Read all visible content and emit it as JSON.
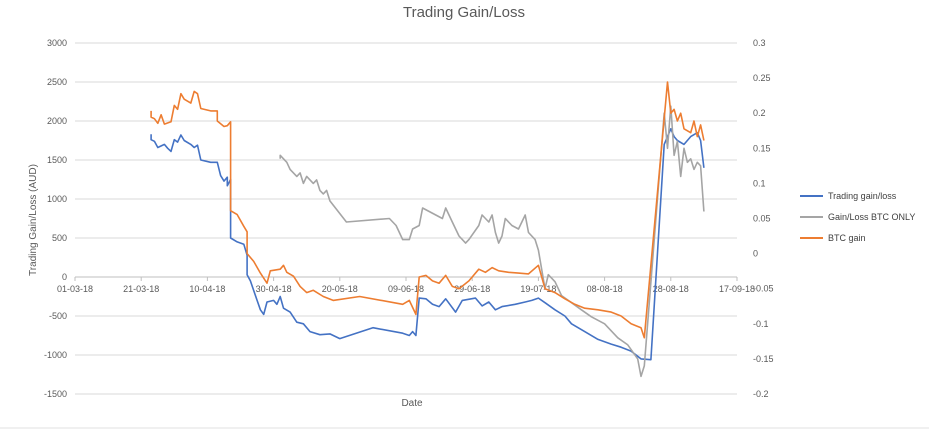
{
  "chart_data": {
    "type": "line",
    "title": "Trading Gain/Loss",
    "xlabel": "Date",
    "ylabel": "Trading Gain/Loss (AUD)",
    "y2label": "",
    "grid": true,
    "legend_position": "right",
    "xlim": [
      "2018-03-01",
      "2018-09-17"
    ],
    "ylim": [
      -1500,
      3000
    ],
    "y2lim": [
      -0.2,
      0.3
    ],
    "x_ticks": [
      "01-03-18",
      "21-03-18",
      "10-04-18",
      "30-04-18",
      "20-05-18",
      "09-06-18",
      "29-06-18",
      "19-07-18",
      "08-08-18",
      "28-08-18",
      "17-09-18"
    ],
    "y_ticks": [
      "3000",
      "2500",
      "2000",
      "1500",
      "1000",
      "500",
      "0",
      "-500",
      "-1000",
      "-1500"
    ],
    "y2_ticks": [
      "0.3",
      "0.25",
      "0.2",
      "0.15",
      "0.1",
      "0.05",
      "0",
      "-0.05",
      "-0.1",
      "-0.15",
      "-0.2"
    ],
    "series": [
      {
        "name": "Trading gain/loss",
        "axis": "left",
        "color": "#4472c4",
        "points": [
          [
            "2018-03-24",
            1830
          ],
          [
            "2018-03-24",
            1760
          ],
          [
            "2018-03-25",
            1740
          ],
          [
            "2018-03-26",
            1660
          ],
          [
            "2018-03-28",
            1700
          ],
          [
            "2018-03-29",
            1650
          ],
          [
            "2018-03-30",
            1610
          ],
          [
            "2018-03-31",
            1760
          ],
          [
            "2018-04-01",
            1730
          ],
          [
            "2018-04-02",
            1820
          ],
          [
            "2018-04-03",
            1750
          ],
          [
            "2018-04-05",
            1700
          ],
          [
            "2018-04-06",
            1660
          ],
          [
            "2018-04-07",
            1690
          ],
          [
            "2018-04-08",
            1500
          ],
          [
            "2018-04-11",
            1470
          ],
          [
            "2018-04-13",
            1470
          ],
          [
            "2018-04-14",
            1300
          ],
          [
            "2018-04-15",
            1230
          ],
          [
            "2018-04-16",
            1280
          ],
          [
            "2018-04-16",
            1170
          ],
          [
            "2018-04-17",
            1250
          ],
          [
            "2018-04-17",
            500
          ],
          [
            "2018-04-19",
            450
          ],
          [
            "2018-04-21",
            420
          ],
          [
            "2018-04-22",
            280
          ],
          [
            "2018-04-22",
            30
          ],
          [
            "2018-04-23",
            -50
          ],
          [
            "2018-04-25",
            -300
          ],
          [
            "2018-04-26",
            -420
          ],
          [
            "2018-04-27",
            -480
          ],
          [
            "2018-04-28",
            -320
          ],
          [
            "2018-04-30",
            -300
          ],
          [
            "2018-05-01",
            -350
          ],
          [
            "2018-05-02",
            -250
          ],
          [
            "2018-05-03",
            -400
          ],
          [
            "2018-05-05",
            -450
          ],
          [
            "2018-05-07",
            -580
          ],
          [
            "2018-05-09",
            -600
          ],
          [
            "2018-05-11",
            -700
          ],
          [
            "2018-05-14",
            -740
          ],
          [
            "2018-05-17",
            -730
          ],
          [
            "2018-05-20",
            -790
          ],
          [
            "2018-05-30",
            -650
          ],
          [
            "2018-06-08",
            -720
          ],
          [
            "2018-06-10",
            -750
          ],
          [
            "2018-06-11",
            -700
          ],
          [
            "2018-06-12",
            -750
          ],
          [
            "2018-06-13",
            -270
          ],
          [
            "2018-06-15",
            -280
          ],
          [
            "2018-06-17",
            -350
          ],
          [
            "2018-06-19",
            -380
          ],
          [
            "2018-06-21",
            -280
          ],
          [
            "2018-06-24",
            -450
          ],
          [
            "2018-06-26",
            -300
          ],
          [
            "2018-06-30",
            -270
          ],
          [
            "2018-07-02",
            -370
          ],
          [
            "2018-07-04",
            -320
          ],
          [
            "2018-07-06",
            -420
          ],
          [
            "2018-07-08",
            -380
          ],
          [
            "2018-07-12",
            -350
          ],
          [
            "2018-07-15",
            -320
          ],
          [
            "2018-07-17",
            -300
          ],
          [
            "2018-07-19",
            -270
          ],
          [
            "2018-07-21",
            -330
          ],
          [
            "2018-07-24",
            -420
          ],
          [
            "2018-07-27",
            -500
          ],
          [
            "2018-07-29",
            -600
          ],
          [
            "2018-08-02",
            -700
          ],
          [
            "2018-08-06",
            -800
          ],
          [
            "2018-08-10",
            -860
          ],
          [
            "2018-08-13",
            -900
          ],
          [
            "2018-08-16",
            -950
          ],
          [
            "2018-08-19",
            -1050
          ],
          [
            "2018-08-22",
            -1060
          ],
          [
            "2018-08-26",
            1700
          ],
          [
            "2018-08-28",
            1900
          ],
          [
            "2018-08-29",
            1800
          ],
          [
            "2018-08-30",
            1750
          ],
          [
            "2018-09-01",
            1700
          ],
          [
            "2018-09-03",
            1800
          ],
          [
            "2018-09-05",
            1850
          ],
          [
            "2018-09-06",
            1750
          ],
          [
            "2018-09-07",
            1400
          ]
        ]
      },
      {
        "name": "Gain/Loss BTC ONLY",
        "axis": "right",
        "color": "#a5a5a5",
        "points": [
          [
            "2018-05-02",
            0.135
          ],
          [
            "2018-05-02",
            0.14
          ],
          [
            "2018-05-04",
            0.13
          ],
          [
            "2018-05-05",
            0.12
          ],
          [
            "2018-05-07",
            0.11
          ],
          [
            "2018-05-08",
            0.115
          ],
          [
            "2018-05-09",
            0.1
          ],
          [
            "2018-05-10",
            0.11
          ],
          [
            "2018-05-12",
            0.1
          ],
          [
            "2018-05-13",
            0.105
          ],
          [
            "2018-05-14",
            0.09
          ],
          [
            "2018-05-15",
            0.085
          ],
          [
            "2018-05-16",
            0.09
          ],
          [
            "2018-05-17",
            0.075
          ],
          [
            "2018-05-22",
            0.045
          ],
          [
            "2018-06-04",
            0.05
          ],
          [
            "2018-06-06",
            0.04
          ],
          [
            "2018-06-08",
            0.02
          ],
          [
            "2018-06-10",
            0.02
          ],
          [
            "2018-06-11",
            0.035
          ],
          [
            "2018-06-13",
            0.04
          ],
          [
            "2018-06-14",
            0.065
          ],
          [
            "2018-06-16",
            0.06
          ],
          [
            "2018-06-18",
            0.055
          ],
          [
            "2018-06-20",
            0.05
          ],
          [
            "2018-06-21",
            0.065
          ],
          [
            "2018-06-23",
            0.045
          ],
          [
            "2018-06-25",
            0.025
          ],
          [
            "2018-06-27",
            0.015
          ],
          [
            "2018-06-28",
            0.02
          ],
          [
            "2018-07-01",
            0.04
          ],
          [
            "2018-07-02",
            0.055
          ],
          [
            "2018-07-04",
            0.045
          ],
          [
            "2018-07-05",
            0.055
          ],
          [
            "2018-07-06",
            0.03
          ],
          [
            "2018-07-07",
            0.015
          ],
          [
            "2018-07-08",
            0.025
          ],
          [
            "2018-07-09",
            0.05
          ],
          [
            "2018-07-11",
            0.04
          ],
          [
            "2018-07-13",
            0.035
          ],
          [
            "2018-07-15",
            0.055
          ],
          [
            "2018-07-16",
            0.03
          ],
          [
            "2018-07-18",
            0.02
          ],
          [
            "2018-07-19",
            0.005
          ],
          [
            "2018-07-21",
            -0.05
          ],
          [
            "2018-07-22",
            -0.03
          ],
          [
            "2018-07-24",
            -0.04
          ],
          [
            "2018-07-26",
            -0.06
          ],
          [
            "2018-07-29",
            -0.07
          ],
          [
            "2018-08-01",
            -0.08
          ],
          [
            "2018-08-04",
            -0.09
          ],
          [
            "2018-08-08",
            -0.1
          ],
          [
            "2018-08-12",
            -0.12
          ],
          [
            "2018-08-15",
            -0.13
          ],
          [
            "2018-08-18",
            -0.15
          ],
          [
            "2018-08-19",
            -0.175
          ],
          [
            "2018-08-20",
            -0.16
          ],
          [
            "2018-08-26",
            0.2
          ],
          [
            "2018-08-27",
            0.15
          ],
          [
            "2018-08-28",
            0.21
          ],
          [
            "2018-08-29",
            0.14
          ],
          [
            "2018-08-30",
            0.16
          ],
          [
            "2018-08-31",
            0.11
          ],
          [
            "2018-09-01",
            0.15
          ],
          [
            "2018-09-02",
            0.13
          ],
          [
            "2018-09-03",
            0.135
          ],
          [
            "2018-09-04",
            0.12
          ],
          [
            "2018-09-05",
            0.13
          ],
          [
            "2018-09-06",
            0.125
          ],
          [
            "2018-09-07",
            0.06
          ]
        ]
      },
      {
        "name": "BTC gain",
        "axis": "left",
        "color": "#ed7d31",
        "points": [
          [
            "2018-03-24",
            2130
          ],
          [
            "2018-03-24",
            2050
          ],
          [
            "2018-03-25",
            2030
          ],
          [
            "2018-03-26",
            1970
          ],
          [
            "2018-03-27",
            2080
          ],
          [
            "2018-03-28",
            1960
          ],
          [
            "2018-03-30",
            1990
          ],
          [
            "2018-03-31",
            2200
          ],
          [
            "2018-04-01",
            2150
          ],
          [
            "2018-04-02",
            2350
          ],
          [
            "2018-04-03",
            2280
          ],
          [
            "2018-04-05",
            2230
          ],
          [
            "2018-04-06",
            2380
          ],
          [
            "2018-04-07",
            2350
          ],
          [
            "2018-04-08",
            2160
          ],
          [
            "2018-04-11",
            2130
          ],
          [
            "2018-04-13",
            2130
          ],
          [
            "2018-04-13",
            2000
          ],
          [
            "2018-04-15",
            1930
          ],
          [
            "2018-04-16",
            1940
          ],
          [
            "2018-04-17",
            1990
          ],
          [
            "2018-04-17",
            850
          ],
          [
            "2018-04-19",
            800
          ],
          [
            "2018-04-21",
            650
          ],
          [
            "2018-04-22",
            580
          ],
          [
            "2018-04-22",
            300
          ],
          [
            "2018-04-24",
            200
          ],
          [
            "2018-04-26",
            50
          ],
          [
            "2018-04-28",
            -80
          ],
          [
            "2018-04-29",
            80
          ],
          [
            "2018-05-02",
            100
          ],
          [
            "2018-05-03",
            150
          ],
          [
            "2018-05-04",
            60
          ],
          [
            "2018-05-06",
            10
          ],
          [
            "2018-05-08",
            -120
          ],
          [
            "2018-05-10",
            -200
          ],
          [
            "2018-05-12",
            -170
          ],
          [
            "2018-05-15",
            -250
          ],
          [
            "2018-05-18",
            -300
          ],
          [
            "2018-05-26",
            -250
          ],
          [
            "2018-06-08",
            -350
          ],
          [
            "2018-06-10",
            -300
          ],
          [
            "2018-06-12",
            -480
          ],
          [
            "2018-06-13",
            0
          ],
          [
            "2018-06-15",
            20
          ],
          [
            "2018-06-17",
            -50
          ],
          [
            "2018-06-19",
            -80
          ],
          [
            "2018-06-21",
            20
          ],
          [
            "2018-06-23",
            -120
          ],
          [
            "2018-06-25",
            -150
          ],
          [
            "2018-06-28",
            -50
          ],
          [
            "2018-07-01",
            100
          ],
          [
            "2018-07-03",
            60
          ],
          [
            "2018-07-05",
            120
          ],
          [
            "2018-07-07",
            80
          ],
          [
            "2018-07-10",
            60
          ],
          [
            "2018-07-13",
            50
          ],
          [
            "2018-07-16",
            40
          ],
          [
            "2018-07-19",
            150
          ],
          [
            "2018-07-21",
            -150
          ],
          [
            "2018-07-24",
            -200
          ],
          [
            "2018-07-27",
            -280
          ],
          [
            "2018-07-30",
            -350
          ],
          [
            "2018-08-02",
            -400
          ],
          [
            "2018-08-06",
            -420
          ],
          [
            "2018-08-10",
            -450
          ],
          [
            "2018-08-13",
            -500
          ],
          [
            "2018-08-16",
            -600
          ],
          [
            "2018-08-19",
            -650
          ],
          [
            "2018-08-20",
            -780
          ],
          [
            "2018-08-27",
            2500
          ],
          [
            "2018-08-28",
            2100
          ],
          [
            "2018-08-29",
            2150
          ],
          [
            "2018-08-30",
            2000
          ],
          [
            "2018-08-31",
            2100
          ],
          [
            "2018-09-01",
            1900
          ],
          [
            "2018-09-03",
            1850
          ],
          [
            "2018-09-04",
            2000
          ],
          [
            "2018-09-05",
            1800
          ],
          [
            "2018-09-06",
            1950
          ],
          [
            "2018-09-07",
            1750
          ]
        ]
      }
    ]
  }
}
